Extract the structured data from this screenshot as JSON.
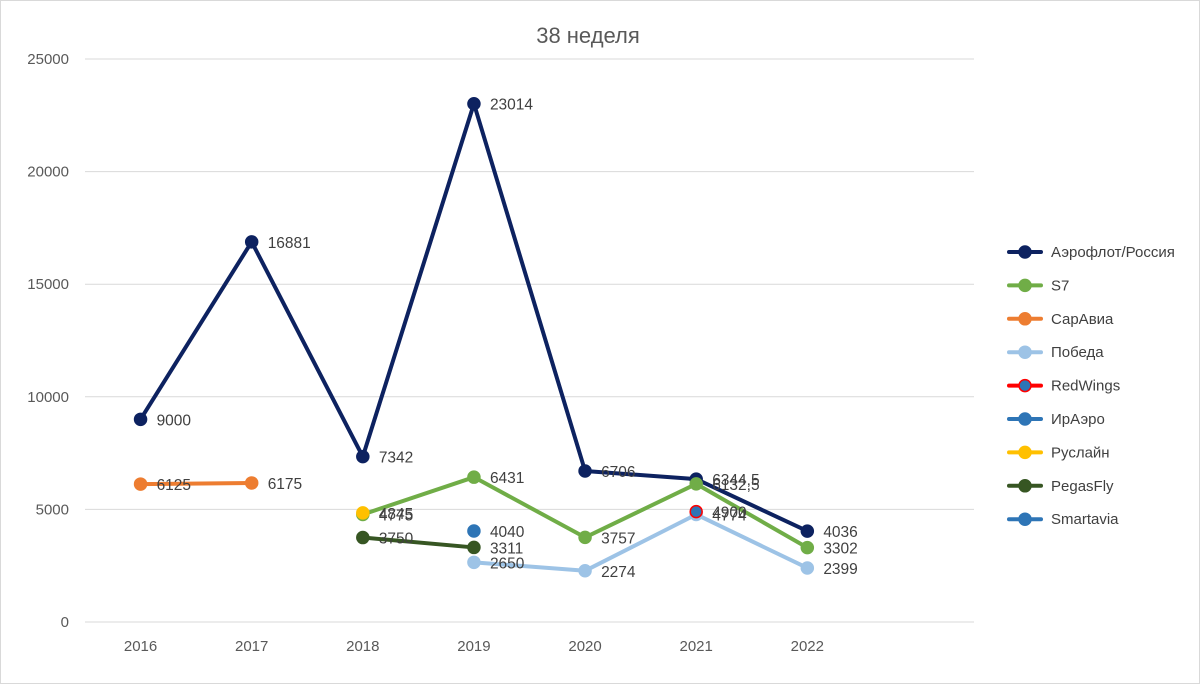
{
  "chart_data": {
    "type": "line",
    "title": "38 неделя",
    "xlabel": "",
    "ylabel": "",
    "categories": [
      "2016",
      "2017",
      "2018",
      "2019",
      "2020",
      "2021",
      "2022"
    ],
    "y_ticks": [
      "0",
      "5000",
      "10000",
      "15000",
      "20000",
      "25000"
    ],
    "ylim": [
      0,
      25000
    ],
    "grid": "horizontal",
    "legend_position": "right",
    "series": [
      {
        "name": "Аэрофлот/Россия",
        "color": "#0d2260",
        "marker_fill": "#0d2260",
        "values": [
          9000,
          16881,
          7342,
          23014,
          6706,
          6344.5,
          4036
        ],
        "labels": [
          "9000",
          "16881",
          "7342",
          "23014",
          "6706",
          "6344,5",
          "4036"
        ]
      },
      {
        "name": "S7",
        "color": "#70ad47",
        "marker_fill": "#70ad47",
        "values": [
          null,
          null,
          4775,
          6431,
          3757,
          6132.5,
          3302
        ],
        "labels": [
          "",
          "",
          "4775",
          "6431",
          "3757",
          "6132,5",
          "3302"
        ]
      },
      {
        "name": "СарАвиа",
        "color": "#ed7d31",
        "marker_fill": "#ed7d31",
        "values": [
          6125,
          6175,
          null,
          null,
          null,
          null,
          null
        ],
        "labels": [
          "6125",
          "6175",
          "",
          "",
          "",
          "",
          ""
        ]
      },
      {
        "name": "Победа",
        "color": "#9dc3e6",
        "marker_fill": "#9dc3e6",
        "values": [
          null,
          null,
          null,
          2650,
          2274,
          4774,
          2399
        ],
        "labels": [
          "",
          "",
          "",
          "2650",
          "2274",
          "4774",
          "2399"
        ]
      },
      {
        "name": "RedWings",
        "color": "#ff0000",
        "marker_fill": "#2e75b6",
        "values": [
          null,
          null,
          null,
          null,
          null,
          4900,
          null
        ],
        "labels": [
          "",
          "",
          "",
          "",
          "",
          "4900",
          ""
        ]
      },
      {
        "name": "ИрАэро",
        "color": "#2e75b6",
        "marker_fill": "#2e75b6",
        "values": [
          null,
          null,
          null,
          4040,
          null,
          null,
          null
        ],
        "labels": [
          "",
          "",
          "",
          "4040",
          "",
          "",
          ""
        ]
      },
      {
        "name": "Руслайн",
        "color": "#ffc000",
        "marker_fill": "#ffc000",
        "values": [
          null,
          null,
          4845,
          null,
          null,
          null,
          null
        ],
        "labels": [
          "",
          "",
          "4845",
          "",
          "",
          "",
          ""
        ]
      },
      {
        "name": "PegasFly",
        "color": "#375623",
        "marker_fill": "#375623",
        "values": [
          null,
          null,
          3750,
          3311,
          null,
          null,
          null
        ],
        "labels": [
          "",
          "",
          "3750",
          "3311",
          "",
          "",
          ""
        ]
      },
      {
        "name": "Smartavia",
        "color": "#2e75b6",
        "marker_fill": "#2e75b6",
        "values": [
          null,
          null,
          null,
          null,
          null,
          null,
          null
        ],
        "labels": [
          "",
          "",
          "",
          "",
          "",
          "",
          ""
        ]
      }
    ]
  }
}
